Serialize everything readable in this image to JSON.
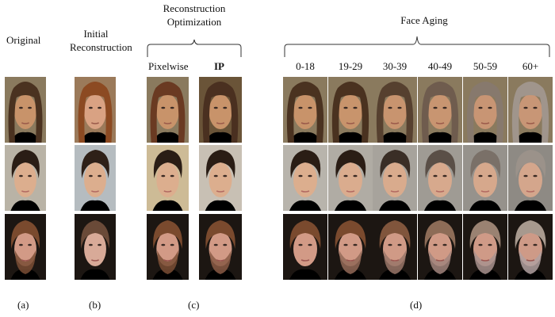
{
  "headers": {
    "original": "Original",
    "initial_reconstruction": [
      "Initial",
      "Reconstruction"
    ],
    "reconstruction_optimization": [
      "Reconstruction",
      "Optimization"
    ],
    "pixelwise": "Pixelwise",
    "ip": "IP",
    "face_aging": "Face Aging",
    "age_groups": [
      "0-18",
      "19-29",
      "30-39",
      "40-49",
      "50-59",
      "60+"
    ]
  },
  "panel_labels": [
    "(a)",
    "(b)",
    "(c)",
    "(d)"
  ],
  "subjects": [
    "woman-long-brown-hair",
    "young-man-dark-hair",
    "bearded-man-red-hair"
  ]
}
